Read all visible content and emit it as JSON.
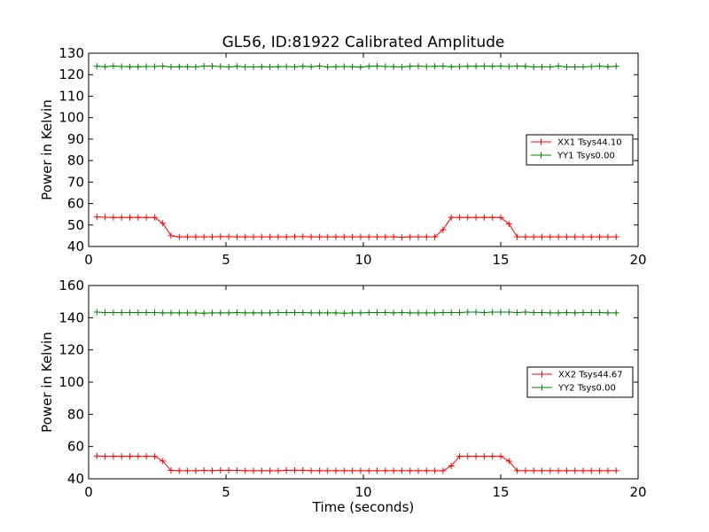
{
  "title": "GL56, ID:81922 Calibrated Amplitude",
  "xlabel": "Time (seconds)",
  "colors": {
    "xx": "#ff0000",
    "yy": "#008000"
  },
  "chart_data": [
    {
      "type": "line",
      "ylabel": "Power in Kelvin",
      "xlim": [
        0,
        20
      ],
      "ylim": [
        40,
        130
      ],
      "xticks": [
        0,
        5,
        10,
        15,
        20
      ],
      "yticks": [
        40,
        50,
        60,
        70,
        80,
        90,
        100,
        110,
        120,
        130
      ],
      "legend_position": "center-right",
      "series": [
        {
          "name": "XX1 Tsys44.10",
          "color": "#ff0000",
          "x": [
            0.3,
            0.6,
            0.9,
            1.2,
            1.5,
            1.8,
            2.1,
            2.4,
            2.7,
            3.0,
            3.3,
            3.6,
            3.9,
            4.2,
            4.5,
            4.8,
            5.1,
            5.4,
            5.7,
            6.0,
            6.3,
            6.6,
            6.9,
            7.2,
            7.5,
            7.8,
            8.1,
            8.4,
            8.7,
            9.0,
            9.3,
            9.6,
            9.9,
            10.2,
            10.5,
            10.8,
            11.1,
            11.4,
            11.7,
            12.0,
            12.3,
            12.6,
            12.9,
            13.2,
            13.5,
            13.8,
            14.1,
            14.4,
            14.7,
            15.0,
            15.3,
            15.6,
            15.9,
            16.2,
            16.5,
            16.8,
            17.1,
            17.4,
            17.7,
            18.0,
            18.3,
            18.6,
            18.9,
            19.2
          ],
          "y": [
            53.8,
            53.6,
            53.5,
            53.5,
            53.5,
            53.5,
            53.5,
            53.5,
            50.8,
            45.0,
            44.5,
            44.5,
            44.5,
            44.5,
            44.5,
            44.6,
            44.6,
            44.5,
            44.5,
            44.5,
            44.5,
            44.5,
            44.5,
            44.5,
            44.6,
            44.6,
            44.5,
            44.5,
            44.5,
            44.5,
            44.5,
            44.5,
            44.5,
            44.5,
            44.5,
            44.5,
            44.5,
            44.3,
            44.5,
            44.5,
            44.5,
            44.5,
            47.8,
            53.5,
            53.5,
            53.5,
            53.5,
            53.5,
            53.5,
            53.5,
            50.5,
            44.5,
            44.5,
            44.5,
            44.5,
            44.5,
            44.5,
            44.5,
            44.5,
            44.5,
            44.5,
            44.5,
            44.5,
            44.5
          ]
        },
        {
          "name": "YY1 Tsys0.00",
          "color": "#008000",
          "x": [
            0.3,
            0.6,
            0.9,
            1.2,
            1.5,
            1.8,
            2.1,
            2.4,
            2.7,
            3.0,
            3.3,
            3.6,
            3.9,
            4.2,
            4.5,
            4.8,
            5.1,
            5.4,
            5.7,
            6.0,
            6.3,
            6.6,
            6.9,
            7.2,
            7.5,
            7.8,
            8.1,
            8.4,
            8.7,
            9.0,
            9.3,
            9.6,
            9.9,
            10.2,
            10.5,
            10.8,
            11.1,
            11.4,
            11.7,
            12.0,
            12.3,
            12.6,
            12.9,
            13.2,
            13.5,
            13.8,
            14.1,
            14.4,
            14.7,
            15.0,
            15.3,
            15.6,
            15.9,
            16.2,
            16.5,
            16.8,
            17.1,
            17.4,
            17.7,
            18.0,
            18.3,
            18.6,
            18.9,
            19.2
          ],
          "y": [
            123.9,
            123.7,
            124.0,
            123.8,
            123.7,
            123.7,
            123.8,
            123.8,
            124.0,
            123.6,
            123.7,
            123.7,
            123.6,
            124.0,
            124.0,
            123.8,
            123.6,
            123.9,
            123.6,
            123.6,
            123.7,
            123.6,
            123.7,
            123.8,
            123.6,
            123.9,
            123.7,
            124.0,
            123.6,
            123.7,
            123.8,
            123.7,
            123.5,
            123.9,
            124.0,
            123.8,
            123.7,
            123.6,
            123.9,
            124.0,
            123.8,
            123.9,
            124.0,
            123.7,
            123.8,
            123.9,
            123.9,
            124.0,
            123.9,
            124.0,
            123.8,
            124.0,
            123.9,
            123.6,
            123.6,
            123.6,
            124.0,
            123.6,
            123.6,
            123.6,
            123.8,
            124.0,
            123.7,
            123.9
          ]
        }
      ]
    },
    {
      "type": "line",
      "ylabel": "Power in Kelvin",
      "xlabel": "Time (seconds)",
      "xlim": [
        0,
        20
      ],
      "ylim": [
        40,
        160
      ],
      "xticks": [
        0,
        5,
        10,
        15,
        20
      ],
      "yticks": [
        40,
        60,
        80,
        100,
        120,
        140,
        160
      ],
      "legend_position": "center-right",
      "series": [
        {
          "name": "XX2 Tsys44.67",
          "color": "#ff0000",
          "x": [
            0.3,
            0.6,
            0.9,
            1.2,
            1.5,
            1.8,
            2.1,
            2.4,
            2.7,
            3.0,
            3.3,
            3.6,
            3.9,
            4.2,
            4.5,
            4.8,
            5.1,
            5.4,
            5.7,
            6.0,
            6.3,
            6.6,
            6.9,
            7.2,
            7.5,
            7.8,
            8.1,
            8.4,
            8.7,
            9.0,
            9.3,
            9.6,
            9.9,
            10.2,
            10.5,
            10.8,
            11.1,
            11.4,
            11.7,
            12.0,
            12.3,
            12.6,
            12.9,
            13.2,
            13.5,
            13.8,
            14.1,
            14.4,
            14.7,
            15.0,
            15.3,
            15.6,
            15.9,
            16.2,
            16.5,
            16.8,
            17.1,
            17.4,
            17.7,
            18.0,
            18.3,
            18.6,
            18.9,
            19.2
          ],
          "y": [
            54.2,
            54.0,
            54.0,
            54.0,
            54.0,
            54.0,
            54.0,
            54.0,
            51.0,
            45.2,
            45.0,
            45.0,
            45.0,
            45.2,
            45.0,
            45.3,
            45.3,
            45.2,
            45.0,
            45.0,
            45.0,
            45.0,
            45.0,
            45.3,
            45.3,
            45.3,
            45.0,
            45.0,
            45.0,
            45.0,
            45.0,
            45.0,
            45.0,
            45.0,
            45.0,
            45.0,
            45.0,
            45.0,
            45.0,
            45.0,
            45.0,
            45.0,
            45.0,
            48.0,
            54.0,
            54.0,
            54.0,
            54.0,
            54.0,
            54.0,
            51.0,
            45.0,
            45.0,
            45.0,
            45.0,
            45.0,
            45.0,
            45.0,
            45.0,
            45.0,
            45.0,
            45.0,
            45.0,
            45.0
          ]
        },
        {
          "name": "YY2 Tsys0.00",
          "color": "#008000",
          "x": [
            0.3,
            0.6,
            0.9,
            1.2,
            1.5,
            1.8,
            2.1,
            2.4,
            2.7,
            3.0,
            3.3,
            3.6,
            3.9,
            4.2,
            4.5,
            4.8,
            5.1,
            5.4,
            5.7,
            6.0,
            6.3,
            6.6,
            6.9,
            7.2,
            7.5,
            7.8,
            8.1,
            8.4,
            8.7,
            9.0,
            9.3,
            9.6,
            9.9,
            10.2,
            10.5,
            10.8,
            11.1,
            11.4,
            11.7,
            12.0,
            12.3,
            12.6,
            12.9,
            13.2,
            13.5,
            13.8,
            14.1,
            14.4,
            14.7,
            15.0,
            15.3,
            15.6,
            15.9,
            16.2,
            16.5,
            16.8,
            17.1,
            17.4,
            17.7,
            18.0,
            18.3,
            18.6,
            18.9,
            19.2
          ],
          "y": [
            143.5,
            143.2,
            143.2,
            143.2,
            143.2,
            143.2,
            143.2,
            143.2,
            143.0,
            143.0,
            143.0,
            143.0,
            143.0,
            142.8,
            143.0,
            143.0,
            143.0,
            143.2,
            143.0,
            143.0,
            143.0,
            143.0,
            143.2,
            143.2,
            143.2,
            143.2,
            143.0,
            143.0,
            143.0,
            143.0,
            142.8,
            143.0,
            143.0,
            143.2,
            143.2,
            143.2,
            143.0,
            143.2,
            143.0,
            143.0,
            143.0,
            143.0,
            143.2,
            143.2,
            143.2,
            143.5,
            143.5,
            143.2,
            143.5,
            143.5,
            143.5,
            143.2,
            143.5,
            143.2,
            143.2,
            143.0,
            143.0,
            143.2,
            143.0,
            143.2,
            143.2,
            143.2,
            143.0,
            143.0
          ]
        }
      ]
    }
  ]
}
